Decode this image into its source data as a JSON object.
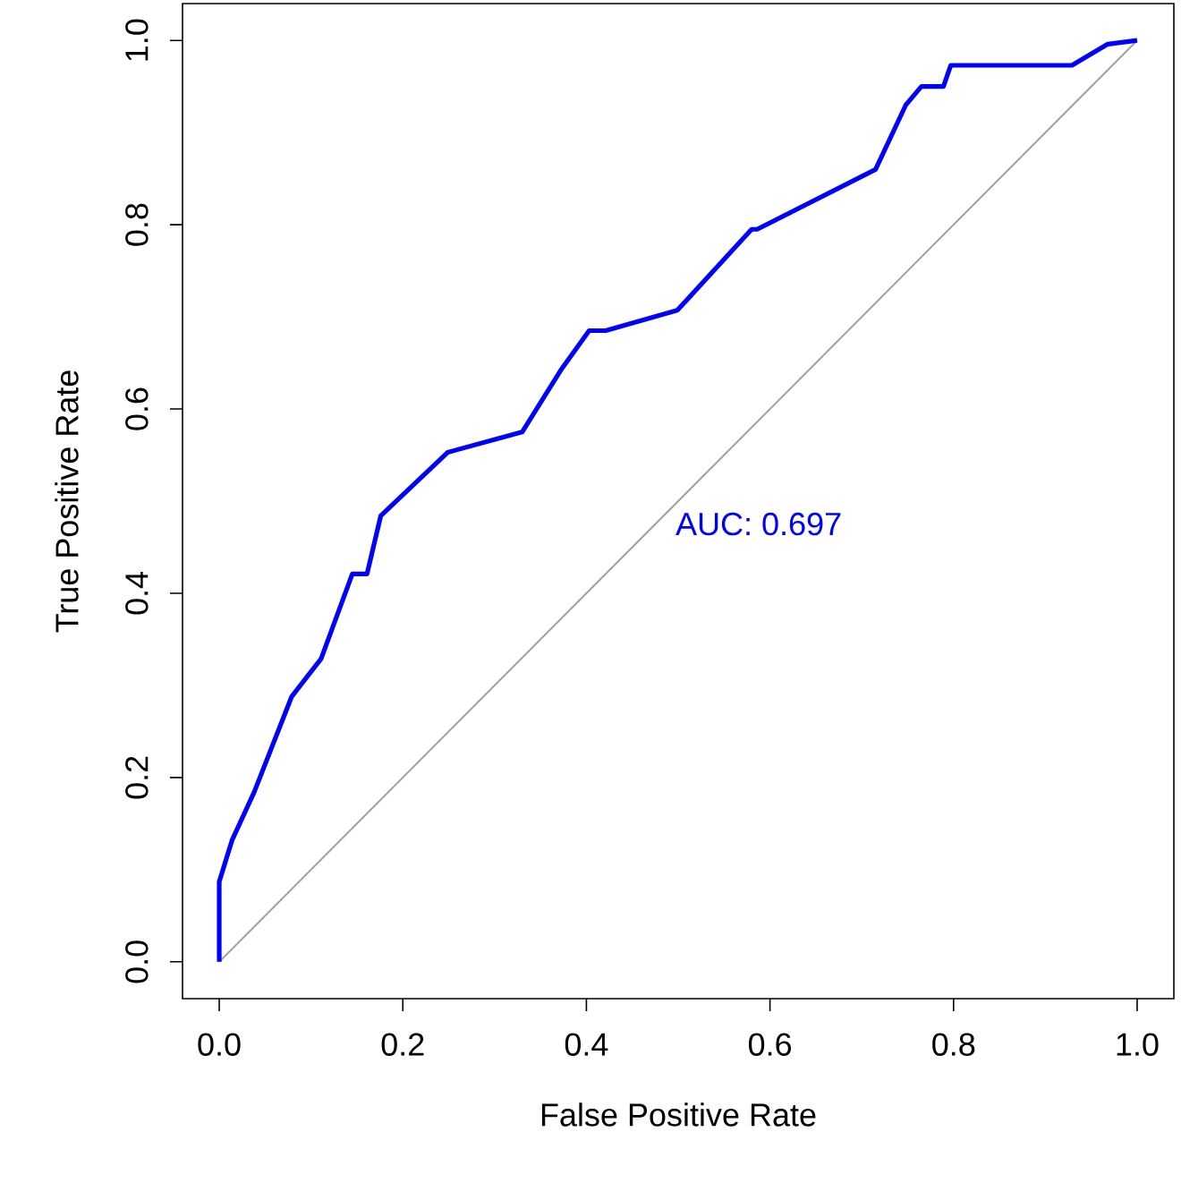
{
  "chart_data": {
    "type": "line",
    "xlabel": "False Positive Rate",
    "ylabel": "True Positive Rate",
    "xlim": [
      -0.04,
      1.04
    ],
    "ylim": [
      -0.04,
      1.04
    ],
    "xticks": [
      {
        "value": 0,
        "label": "0.0"
      },
      {
        "value": 0.2,
        "label": "0.2"
      },
      {
        "value": 0.4,
        "label": "0.4"
      },
      {
        "value": 0.6,
        "label": "0.6"
      },
      {
        "value": 0.8,
        "label": "0.8"
      },
      {
        "value": 1,
        "label": "1.0"
      }
    ],
    "yticks": [
      {
        "value": 0,
        "label": "0.0"
      },
      {
        "value": 0.2,
        "label": "0.2"
      },
      {
        "value": 0.4,
        "label": "0.4"
      },
      {
        "value": 0.6,
        "label": "0.6"
      },
      {
        "value": 0.8,
        "label": "0.8"
      },
      {
        "value": 1,
        "label": "1.0"
      }
    ],
    "annotations": [
      "AUC: 0.697"
    ],
    "series": [
      {
        "color": "#a0a0a0",
        "x": [
          0,
          1
        ],
        "values": [
          0,
          1
        ]
      },
      {
        "color": "#0000ff",
        "x": [
          0,
          0,
          0.014,
          0.038,
          0.079,
          0.111,
          0.145,
          0.161,
          0.176,
          0.249,
          0.33,
          0.372,
          0.403,
          0.421,
          0.499,
          0.58,
          0.586,
          0.715,
          0.748,
          0.765,
          0.789,
          0.797,
          0.929,
          0.968,
          1
        ],
        "values": [
          0,
          0.087,
          0.132,
          0.184,
          0.288,
          0.329,
          0.421,
          0.421,
          0.484,
          0.553,
          0.575,
          0.642,
          0.685,
          0.685,
          0.707,
          0.795,
          0.795,
          0.86,
          0.93,
          0.95,
          0.95,
          0.973,
          0.973,
          0.996,
          1
        ]
      }
    ]
  }
}
